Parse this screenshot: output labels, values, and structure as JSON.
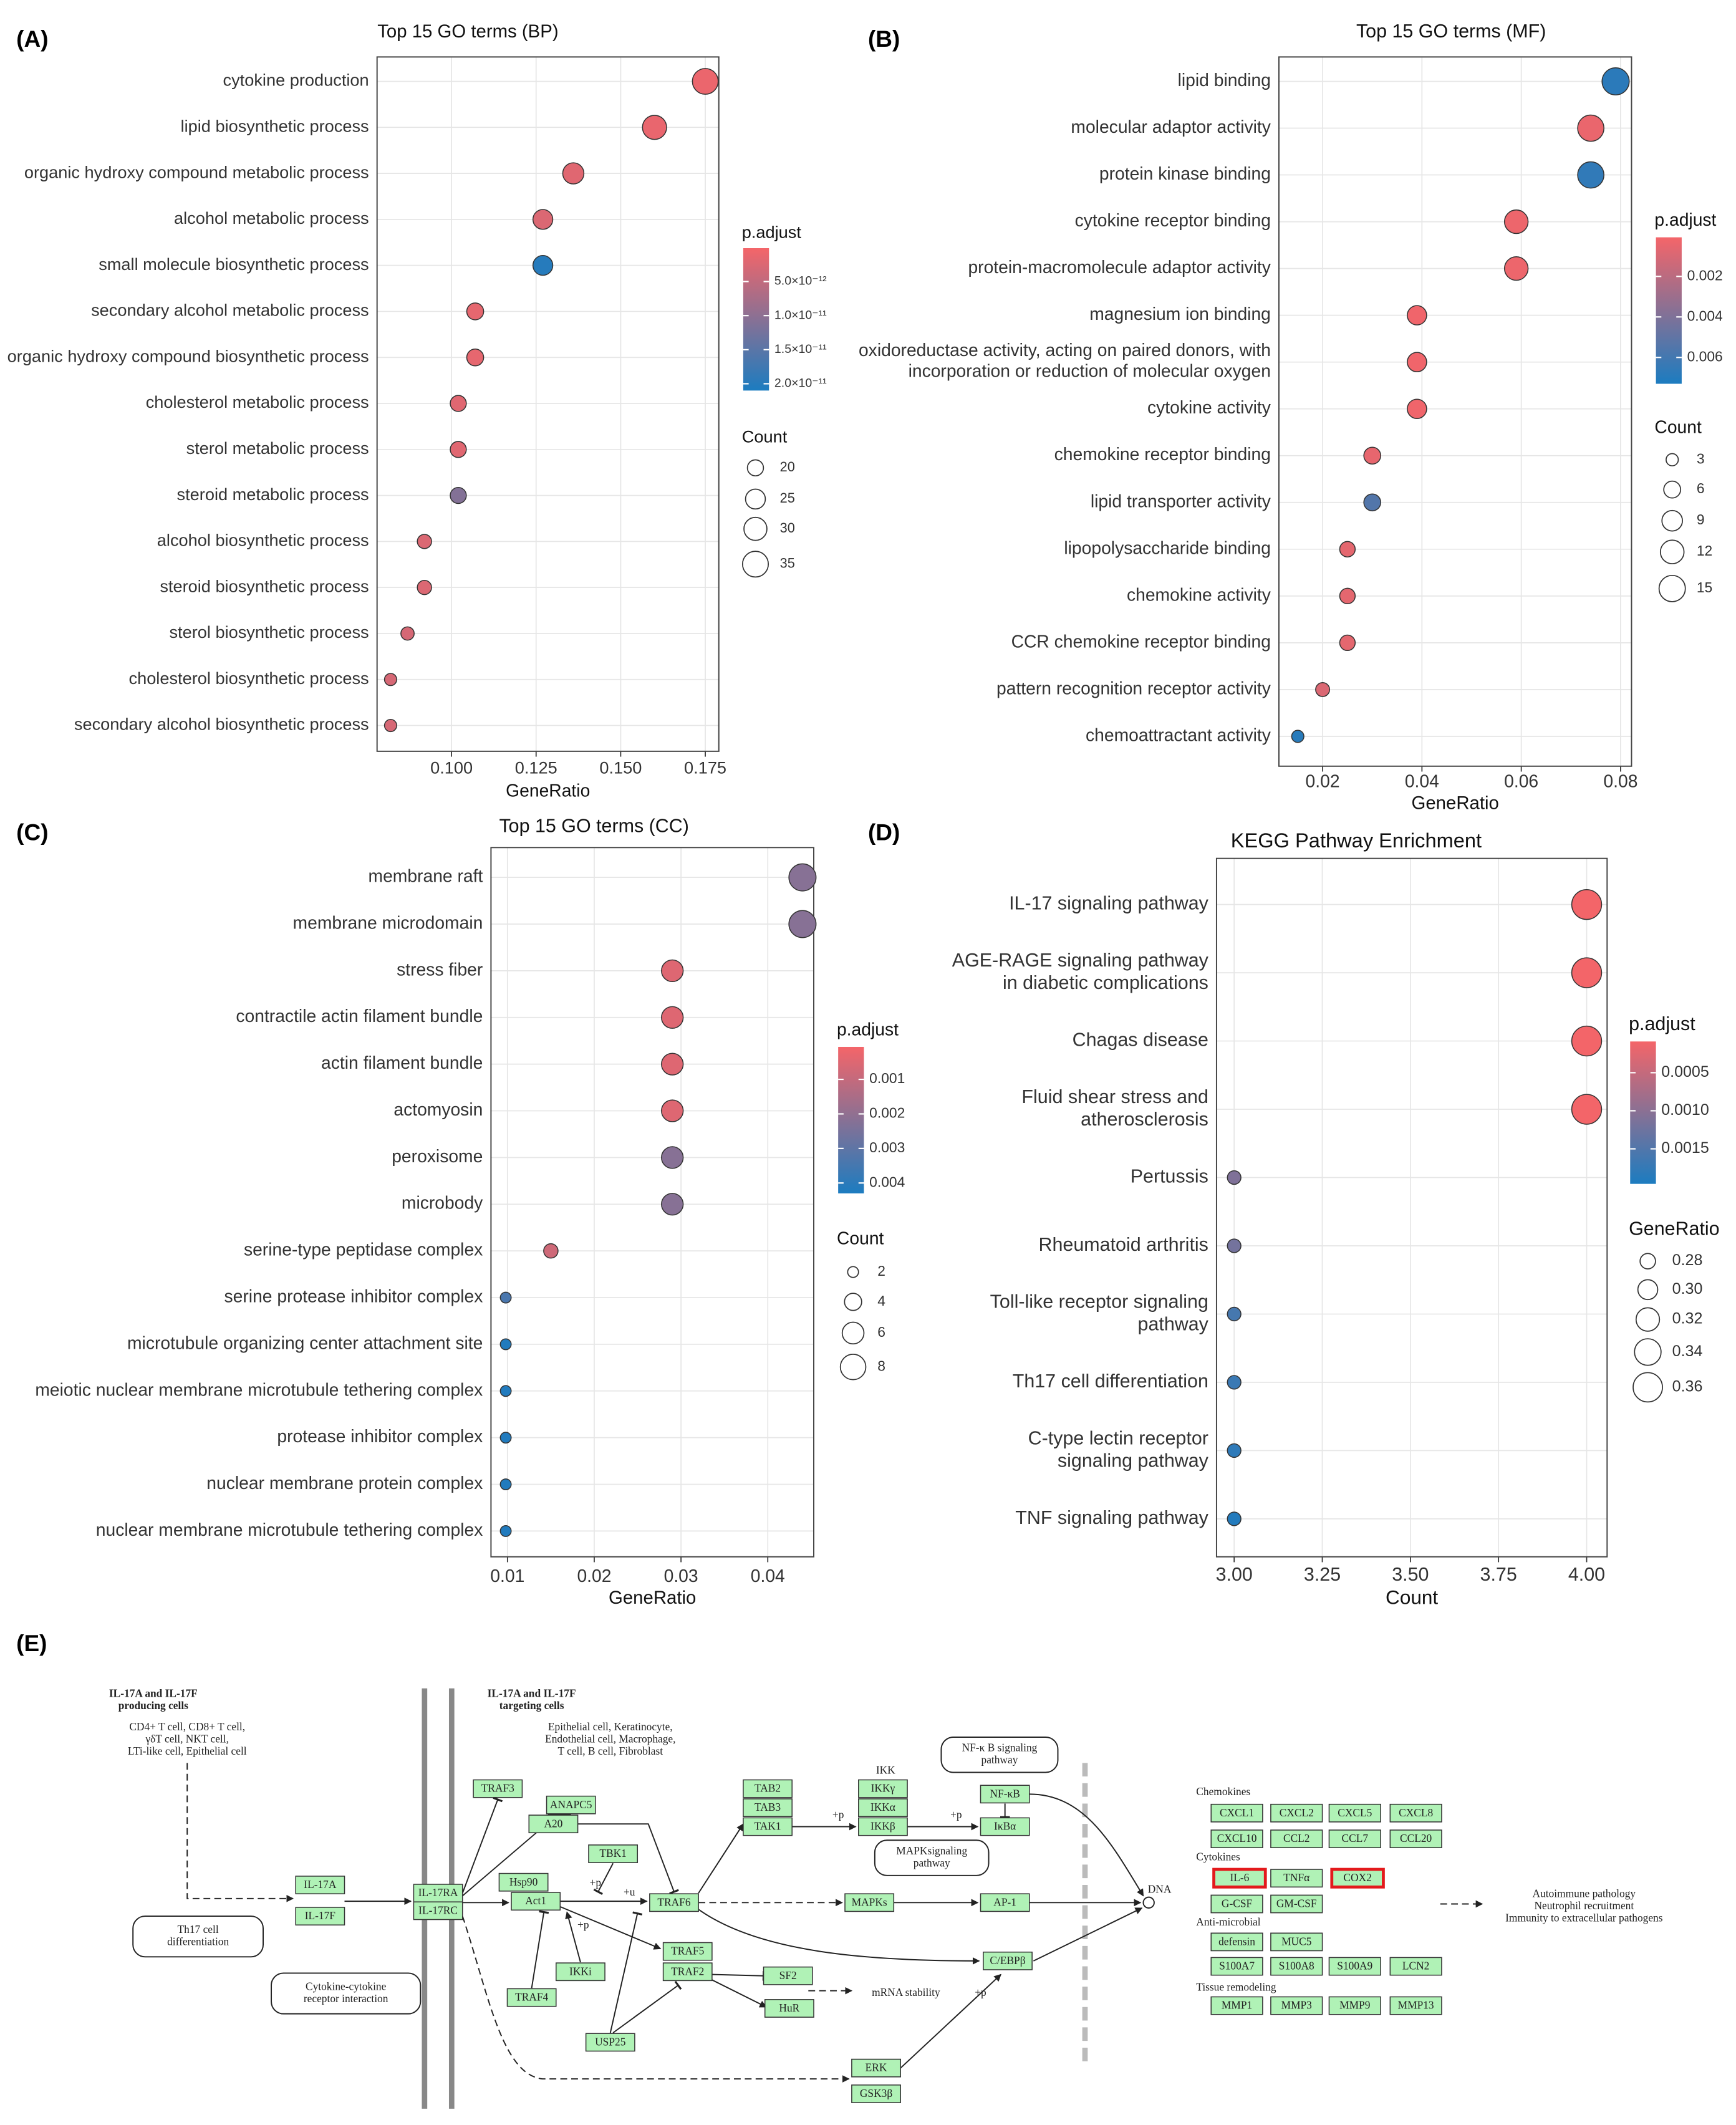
{
  "chart_data": [
    {
      "type": "dot",
      "label": "(A)",
      "title": "Top 15 GO terms (BP)",
      "xlabel": "GeneRatio",
      "categories": [
        "cytokine production",
        "lipid biosynthetic process",
        "organic hydroxy compound metabolic process",
        "alcohol metabolic process",
        "small molecule biosynthetic process",
        "secondary alcohol metabolic process",
        "organic hydroxy compound biosynthetic process",
        "cholesterol metabolic process",
        "sterol metabolic process",
        "steroid metabolic process",
        "alcohol biosynthetic process",
        "steroid biosynthetic process",
        "sterol biosynthetic process",
        "cholesterol biosynthetic process",
        "secondary alcohol biosynthetic process"
      ],
      "values": [
        0.175,
        0.16,
        0.136,
        0.127,
        0.127,
        0.107,
        0.107,
        0.102,
        0.102,
        0.102,
        0.092,
        0.092,
        0.087,
        0.082,
        0.082
      ],
      "size_values": [
        35,
        32,
        27,
        25,
        25,
        21,
        21,
        20,
        20,
        20,
        18,
        18,
        17,
        16,
        16
      ],
      "color_values": [
        1e-12,
        1.2e-12,
        2e-12,
        2.5e-12,
        2e-11,
        1.5e-12,
        1.5e-12,
        2e-12,
        2e-12,
        1.1e-11,
        2.5e-12,
        2.5e-12,
        3e-12,
        3e-12,
        3e-12
      ],
      "xlim": [
        0.078,
        0.179
      ],
      "xticks": [
        {
          "value": 0.1,
          "label": "0.100"
        },
        0.125,
        {
          "value": 0.15,
          "label": "0.150"
        },
        0.175
      ],
      "color_title": "p.adjust",
      "colorlim": [
        1e-13,
        2.1e-11
      ],
      "colors": [
        "#f46569",
        "#1c7cc0"
      ],
      "colorticks": [
        {
          "value": 5e-12,
          "label": "5.0×10⁻¹²"
        },
        {
          "value": 1e-11,
          "label": "1.0×10⁻¹¹"
        },
        {
          "value": 1.5e-11,
          "label": "1.5×10⁻¹¹"
        },
        {
          "value": 2e-11,
          "label": "2.0×10⁻¹¹"
        }
      ],
      "size_title": "Count",
      "sizeticks": [
        20,
        25,
        30,
        35
      ],
      "grid": true
    },
    {
      "type": "dot",
      "label": "(B)",
      "title": "Top 15 GO terms (MF)",
      "xlabel": "GeneRatio",
      "categories": [
        "lipid binding",
        "molecular adaptor activity",
        "protein kinase binding",
        "cytokine receptor binding",
        "protein-macromolecule adaptor activity",
        "magnesium ion binding",
        [
          "oxidoreductase activity, acting on paired donors, with",
          "incorporation or reduction of molecular oxygen"
        ],
        "cytokine activity",
        "chemokine receptor binding",
        "lipid transporter activity",
        "lipopolysaccharide binding",
        "chemokine activity",
        "CCR chemokine receptor binding",
        "pattern recognition receptor activity",
        "chemoattractant activity"
      ],
      "values": [
        0.079,
        0.074,
        0.074,
        0.059,
        0.059,
        0.039,
        0.039,
        0.039,
        0.03,
        0.03,
        0.025,
        0.025,
        0.025,
        0.02,
        0.015
      ],
      "size_values": [
        16,
        15,
        15,
        12,
        12,
        8,
        8,
        8,
        6,
        6,
        5,
        5,
        5,
        4,
        3
      ],
      "color_values": [
        0.0068,
        0.0004,
        0.0066,
        0.0003,
        0.0003,
        0.0002,
        0.0002,
        0.0002,
        0.0005,
        0.0055,
        0.0006,
        0.0006,
        0.0006,
        0.0009,
        0.0069
      ],
      "xlim": [
        0.0112,
        0.0822
      ],
      "xticks": [
        0.02,
        0.04,
        0.06,
        0.08
      ],
      "color_title": "p.adjust",
      "colorlim": [
        7e-05,
        0.0073
      ],
      "colors": [
        "#f46569",
        "#1c7cc0"
      ],
      "colorticks": [
        0.002,
        0.004,
        0.006
      ],
      "size_title": "Count",
      "sizeticks": [
        3,
        6,
        9,
        12,
        15
      ],
      "grid": true
    },
    {
      "type": "dot",
      "label": "(C)",
      "title": "Top 15 GO terms (CC)",
      "xlabel": "GeneRatio",
      "categories": [
        "membrane raft",
        "membrane microdomain",
        "stress fiber",
        "contractile actin filament bundle",
        "actin filament bundle",
        "actomyosin",
        "peroxisome",
        "microbody",
        "serine-type peptidase complex",
        "serine protease inhibitor complex",
        "microtubule organizing center attachment site",
        "meiotic nuclear membrane microtubule tethering complex",
        "protease inhibitor complex",
        "nuclear membrane protein complex",
        "nuclear membrane microtubule tethering complex"
      ],
      "values": [
        0.044,
        0.044,
        0.029,
        0.029,
        0.029,
        0.029,
        0.029,
        0.029,
        0.015,
        0.0098,
        0.0098,
        0.0098,
        0.0098,
        0.0098,
        0.0098
      ],
      "size_values": [
        9,
        9,
        6,
        6,
        6,
        6,
        6,
        6,
        3,
        2,
        2,
        2,
        2,
        2,
        2
      ],
      "color_values": [
        0.0022,
        0.0022,
        0.0005,
        0.0005,
        0.0005,
        0.0005,
        0.0022,
        0.0022,
        0.0008,
        0.0034,
        0.0042,
        0.0042,
        0.0042,
        0.0042,
        0.0042
      ],
      "xlim": [
        0.0081,
        0.0453
      ],
      "xticks": [
        0.01,
        0.02,
        0.03,
        0.04
      ],
      "color_title": "p.adjust",
      "colorlim": [
        6e-05,
        0.0043
      ],
      "colors": [
        "#f46569",
        "#1c7cc0"
      ],
      "colorticks": [
        0.001,
        0.002,
        0.003,
        0.004
      ],
      "size_title": "Count",
      "sizeticks": [
        2,
        4,
        6,
        8
      ],
      "grid": true
    },
    {
      "type": "dot",
      "label": "(D)",
      "title": "KEGG Pathway Enrichment",
      "xlabel": "Count",
      "categories": [
        "IL-17 signaling pathway",
        [
          "AGE-RAGE signaling pathway",
          "in diabetic complications"
        ],
        "Chagas disease",
        [
          "Fluid shear stress and",
          "atherosclerosis"
        ],
        "Pertussis",
        "Rheumatoid arthritis",
        [
          "Toll-like receptor signaling",
          "pathway"
        ],
        "Th17 cell differentiation",
        [
          "C-type lectin receptor",
          "signaling pathway"
        ],
        "TNF signaling pathway"
      ],
      "values": [
        4,
        4,
        4,
        4,
        3,
        3,
        3,
        3,
        3,
        3
      ],
      "size_values": [
        0.364,
        0.364,
        0.364,
        0.364,
        0.273,
        0.273,
        0.273,
        0.273,
        0.273,
        0.273
      ],
      "color_values": [
        0.0001,
        0.0001,
        0.0001,
        0.0001,
        0.0011,
        0.0012,
        0.0016,
        0.0017,
        0.0018,
        0.0019
      ],
      "xlim": [
        2.95,
        4.058
      ],
      "xticks": [
        {
          "value": 3,
          "label": "3.00"
        },
        3.25,
        {
          "value": 3.5,
          "label": "3.50"
        },
        3.75,
        {
          "value": 4,
          "label": "4.00"
        }
      ],
      "color_title": "p.adjust",
      "colorlim": [
        9e-05,
        0.00196
      ],
      "colors": [
        "#f46569",
        "#1c7cc0"
      ],
      "colorticks": [
        0.0005,
        {
          "value": 0.001,
          "label": "0.0010"
        },
        0.0015
      ],
      "size_title": "GeneRatio",
      "sizeticks": [
        {
          "value": 0.28,
          "label": "0.28"
        },
        {
          "value": 0.3,
          "label": "0.30"
        },
        {
          "value": 0.32,
          "label": "0.32"
        },
        {
          "value": 0.34,
          "label": "0.34"
        },
        {
          "value": 0.36,
          "label": "0.36"
        }
      ],
      "grid": true
    }
  ],
  "diagram": {
    "label": "(E)",
    "notes": [
      [
        "IL-17A and IL-17F",
        "producing cells"
      ],
      [
        "CD4+ T cell, CD8+ T cell,",
        "γδT cell, NKT cell,",
        "LTi-like cell, Epithelial cell"
      ],
      [
        "IL-17A and IL-17F",
        "targeting cells"
      ],
      [
        "Epithelial cell, Keratinocyte,",
        "Endothelial cell, Macrophage,",
        "T cell, B cell, Fibroblast"
      ],
      "IKK",
      "+p",
      "+u",
      "+p",
      "+p",
      "+p",
      "+p",
      "mRNA stability",
      "DNA",
      "Chemokines",
      "Cytokines",
      "Anti-microbial",
      "Tissue remodeling",
      [
        "Autoimmune pathology",
        "Neutrophil recruitment",
        "Immunity to extracellular pathogens"
      ]
    ],
    "pathways": [
      [
        "Th17 cell",
        "differentiation"
      ],
      [
        "Cytokine-cytokine",
        "receptor interaction"
      ],
      [
        "NF-κ B signaling",
        "pathway"
      ],
      [
        "MAPKsignaling",
        "pathway"
      ]
    ],
    "genes": [
      "IL-17A",
      "IL-17F",
      "IL-17RA",
      "IL-17RC",
      "TRAF3",
      "ANAPC5",
      "A20",
      "TBK1",
      "Hsp90",
      "Act1",
      "TRAF6",
      "IKKi",
      "TRAF4",
      "USP25",
      "TAB2",
      "TAB3",
      "TAK1",
      "IKKγ",
      "IKKα",
      "IKKβ",
      "NF-κB",
      "IκBα",
      "MAPKs",
      "AP-1",
      "C/EBPβ",
      "TRAF5",
      "TRAF2",
      "SF2",
      "HuR",
      "ERK",
      "GSK3β",
      "CXCL1",
      "CXCL2",
      "CXCL5",
      "CXCL8",
      "CXCL10",
      "CCL2",
      "CCL7",
      "CCL20",
      {
        "label": "IL-6",
        "highlight": true
      },
      "TNFα",
      {
        "label": "COX2",
        "highlight": true
      },
      "G-CSF",
      "GM-CSF",
      "defensin",
      "MUC5",
      "S100A7",
      "S100A8",
      "S100A9",
      "LCN2",
      "MMP1",
      "MMP3",
      "MMP9",
      "MMP13"
    ]
  }
}
